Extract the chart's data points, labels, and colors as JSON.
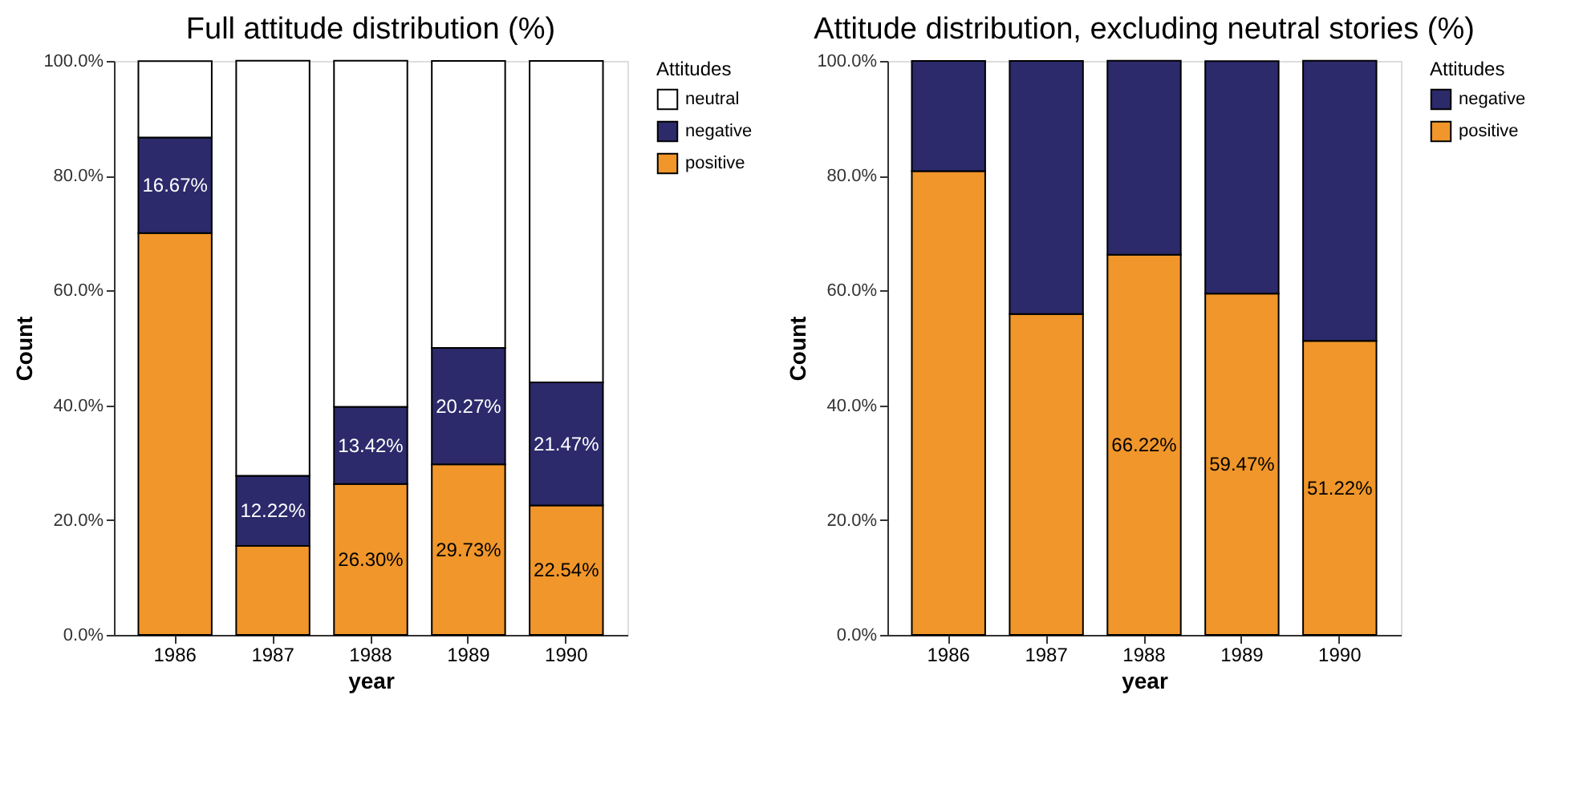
{
  "chart_data": [
    {
      "type": "bar",
      "stacked": true,
      "title": "Full attitude distribution (%)",
      "xlabel": "year",
      "ylabel": "Count",
      "legend_title": "Attitudes",
      "legend": "right",
      "grid": false,
      "categories": [
        "1986",
        "1987",
        "1988",
        "1989",
        "1990"
      ],
      "ylim": [
        0,
        100
      ],
      "yticks": [
        {
          "value": 0,
          "label": "0.0%"
        },
        {
          "value": 20,
          "label": "20.0%"
        },
        {
          "value": 40,
          "label": "40.0%"
        },
        {
          "value": 60,
          "label": "60.0%"
        },
        {
          "value": 80,
          "label": "80.0%"
        },
        {
          "value": 100,
          "label": "100.0%"
        }
      ],
      "series": [
        {
          "name": "positive",
          "color": "#f0962a",
          "values": [
            70.0,
            15.5,
            26.3,
            29.73,
            22.54
          ],
          "value_labels": [
            null,
            null,
            "26.30%",
            "29.73%",
            "22.54%"
          ]
        },
        {
          "name": "negative",
          "color": "#2c2a6b",
          "values": [
            16.67,
            12.22,
            13.42,
            20.27,
            21.47
          ],
          "value_labels": [
            "16.67%",
            "12.22%",
            "13.42%",
            "20.27%",
            "21.47%"
          ]
        },
        {
          "name": "neutral",
          "color": "#ffffff",
          "values": [
            13.3,
            72.3,
            60.3,
            50.0,
            56.0
          ]
        }
      ]
    },
    {
      "type": "bar",
      "stacked": true,
      "title": "Attitude distribution, excluding neutral stories (%)",
      "xlabel": "year",
      "ylabel": "Count",
      "legend_title": "Attitudes",
      "legend": "right",
      "grid": false,
      "categories": [
        "1986",
        "1987",
        "1988",
        "1989",
        "1990"
      ],
      "ylim": [
        0,
        100
      ],
      "yticks": [
        {
          "value": 0,
          "label": "0.0%"
        },
        {
          "value": 20,
          "label": "20.0%"
        },
        {
          "value": 40,
          "label": "40.0%"
        },
        {
          "value": 60,
          "label": "60.0%"
        },
        {
          "value": 80,
          "label": "80.0%"
        },
        {
          "value": 100,
          "label": "100.0%"
        }
      ],
      "series": [
        {
          "name": "positive",
          "color": "#f0962a",
          "values": [
            80.8,
            55.9,
            66.22,
            59.47,
            51.22
          ],
          "value_labels": [
            null,
            null,
            "66.22%",
            "59.47%",
            "51.22%"
          ]
        },
        {
          "name": "negative",
          "color": "#2c2a6b",
          "values": [
            19.2,
            44.1,
            33.8,
            40.5,
            48.8
          ]
        }
      ]
    }
  ]
}
